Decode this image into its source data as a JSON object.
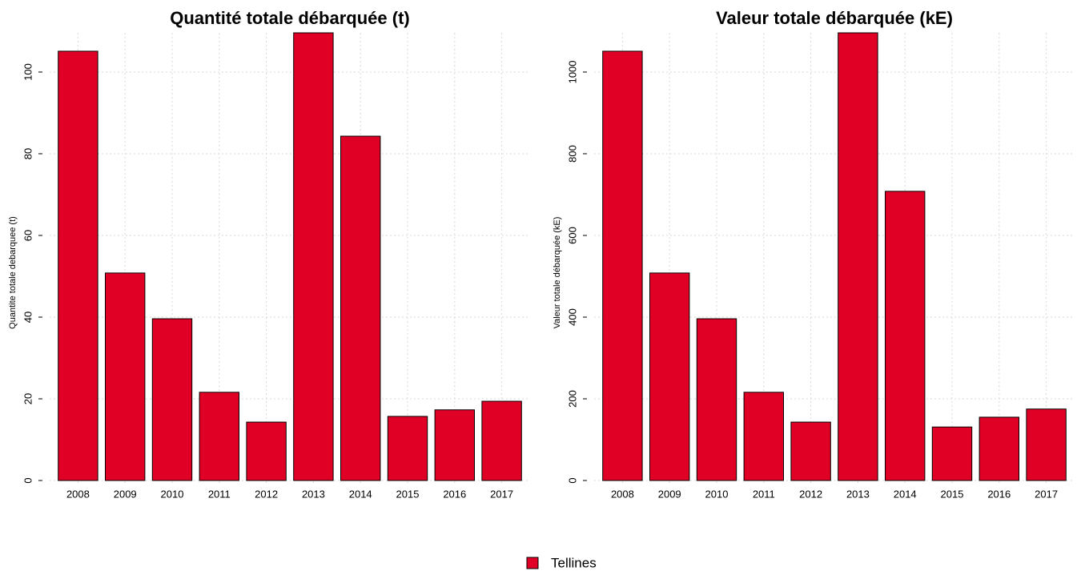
{
  "chart_data": [
    {
      "type": "bar",
      "title": "Quantité totale débarquée (t)",
      "y_label": "Quantite totale debarquee (t)",
      "categories": [
        "2008",
        "2009",
        "2010",
        "2011",
        "2012",
        "2013",
        "2014",
        "2015",
        "2016",
        "2017"
      ],
      "series": [
        {
          "name": "Tellines",
          "color": "#e00025",
          "values": [
            105.1,
            50.8,
            39.6,
            21.6,
            14.3,
            109.6,
            84.3,
            15.7,
            17.3,
            19.4
          ]
        }
      ],
      "ylim": [
        0,
        109.6
      ],
      "yticks": [
        0,
        20,
        40,
        60,
        80,
        100
      ],
      "grid": true
    },
    {
      "type": "bar",
      "title": "Valeur totale débarquée (kE)",
      "y_label": "Valeur totale débarquée (kE)",
      "categories": [
        "2008",
        "2009",
        "2010",
        "2011",
        "2012",
        "2013",
        "2014",
        "2015",
        "2016",
        "2017"
      ],
      "series": [
        {
          "name": "Tellines",
          "color": "#e00025",
          "values": [
            1051,
            508,
            396,
            216,
            143,
            1096,
            708,
            131,
            155,
            175
          ]
        }
      ],
      "ylim": [
        0,
        1096
      ],
      "yticks": [
        0,
        200,
        400,
        600,
        800,
        1000
      ],
      "grid": true
    }
  ]
}
